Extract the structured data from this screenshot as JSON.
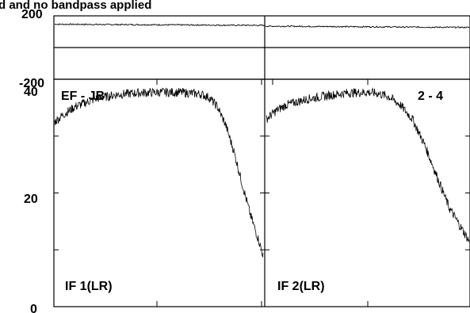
{
  "chart_data": [
    {
      "type": "line",
      "panel": "phase",
      "title": "d and no bandpass applied",
      "y_ticks": [
        "200",
        "-200"
      ],
      "ylim": [
        -200,
        200
      ],
      "series": [
        {
          "x": [
            0,
            1
          ],
          "y": [
            147,
            140
          ]
        },
        {
          "x": [
            0,
            1
          ],
          "y": [
            135,
            127
          ]
        }
      ]
    },
    {
      "type": "line",
      "panel": "amplitude",
      "y_ticks": [
        "40",
        "20",
        "0"
      ],
      "ylim": [
        0,
        40
      ],
      "baseline_label": "EF - JB",
      "correlation_label": "2 - 4",
      "series": [
        {
          "name": "IF 1(LR)",
          "x": [
            0,
            0.05,
            0.1,
            0.2,
            0.3,
            0.4,
            0.5,
            0.6,
            0.7,
            0.74,
            0.78,
            0.82,
            0.86,
            0.9,
            0.94,
            0.98,
            1.0
          ],
          "y": [
            32.5,
            34.0,
            35.2,
            36.6,
            37.3,
            37.6,
            37.7,
            37.7,
            37.4,
            36.8,
            35.2,
            32.0,
            27.3,
            21.5,
            16.0,
            11.5,
            9.0
          ]
        },
        {
          "name": "IF 2(LR)",
          "x": [
            0,
            0.05,
            0.1,
            0.2,
            0.3,
            0.4,
            0.5,
            0.55,
            0.6,
            0.66,
            0.72,
            0.78,
            0.84,
            0.9,
            0.95,
            1.0
          ],
          "y": [
            33.0,
            34.5,
            35.5,
            36.5,
            37.1,
            37.6,
            37.7,
            37.5,
            37.0,
            35.5,
            33.0,
            28.5,
            23.0,
            17.5,
            14.5,
            11.5
          ]
        }
      ]
    }
  ]
}
